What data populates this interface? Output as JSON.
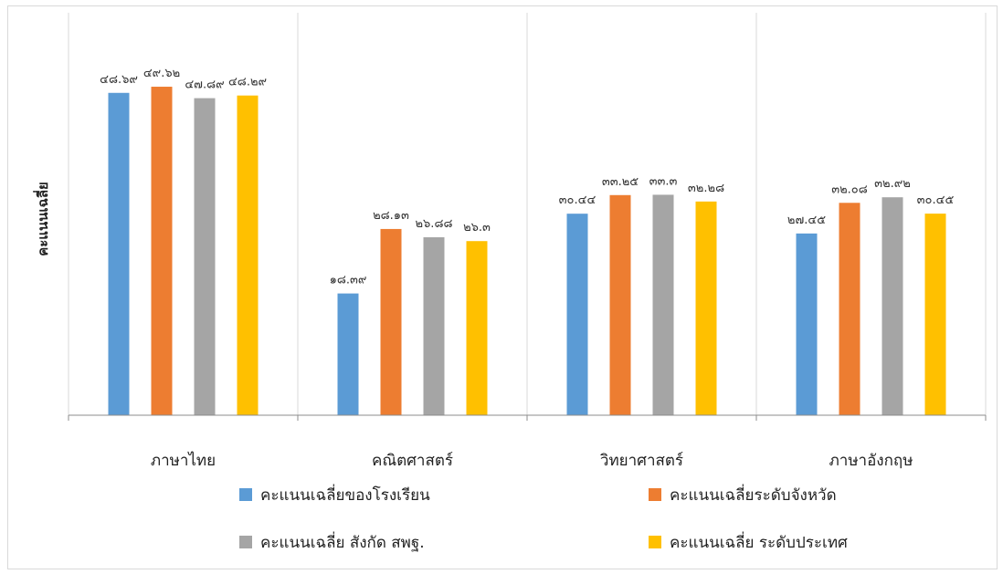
{
  "chart_data": {
    "type": "bar",
    "title": "",
    "ylabel": "คะแนนเฉลี่ย",
    "xlabel": "",
    "ylim": [
      0,
      55
    ],
    "grid": "vertical category separators",
    "legend_position": "bottom",
    "categories": [
      "ภาษาไทย",
      "คณิตศาสตร์",
      "วิทยาศาสตร์",
      "ภาษาอังกฤษ"
    ],
    "series": [
      {
        "name": "คะแนนเฉลี่ยของโรงเรียน",
        "color": "#5B9BD5",
        "values": [
          48.69,
          18.39,
          30.44,
          27.45
        ],
        "labels": [
          "๔๘.๖๙",
          "๑๘.๓๙",
          "๓๐.๔๔",
          "๒๗.๔๕"
        ]
      },
      {
        "name": "คะแนนเฉลี่ยระดับจังหวัด",
        "color": "#ED7D31",
        "values": [
          49.62,
          28.13,
          33.25,
          32.08
        ],
        "labels": [
          "๔๙.๖๒",
          "๒๘.๑๓",
          "๓๓.๒๕",
          "๓๒.๐๘"
        ]
      },
      {
        "name": "คะแนนเฉลี่ย สังกัด สพฐ.",
        "color": "#A5A5A5",
        "values": [
          47.89,
          26.88,
          33.3,
          32.92
        ],
        "labels": [
          "๔๗.๘๙",
          "๒๖.๘๘",
          "๓๓.๓",
          "๓๒.๙๒"
        ]
      },
      {
        "name": "คะแนนเฉลี่ย ระดับประเทศ",
        "color": "#FFC000",
        "values": [
          48.29,
          26.3,
          32.28,
          30.45
        ],
        "labels": [
          "๔๘.๒๙",
          "๒๖.๓",
          "๓๒.๒๘",
          "๓๐.๔๕"
        ]
      }
    ]
  }
}
